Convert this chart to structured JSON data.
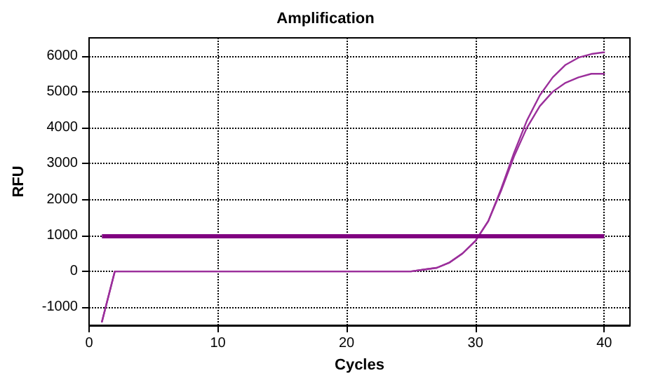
{
  "chart_data": {
    "type": "line",
    "title": "Amplification",
    "xlabel": "Cycles",
    "ylabel": "RFU",
    "xlim": [
      0,
      42
    ],
    "xticks": [
      0,
      10,
      20,
      30,
      40
    ],
    "ylim": [
      -1500,
      6500
    ],
    "yticks": [
      -1000,
      0,
      1000,
      2000,
      3000,
      4000,
      5000,
      6000
    ],
    "grid": true,
    "line_style": "solid",
    "marker": "none",
    "x": [
      1,
      2,
      3,
      4,
      5,
      6,
      7,
      8,
      9,
      10,
      11,
      12,
      13,
      14,
      15,
      16,
      17,
      18,
      19,
      20,
      21,
      22,
      23,
      24,
      25,
      26,
      27,
      28,
      29,
      30,
      31,
      32,
      33,
      34,
      35,
      36,
      37,
      38,
      39,
      40
    ],
    "series": [
      {
        "color": "#9b2f9b",
        "values": [
          -1400,
          0,
          0,
          0,
          0,
          0,
          0,
          0,
          0,
          0,
          0,
          0,
          0,
          0,
          0,
          0,
          0,
          0,
          0,
          0,
          0,
          0,
          0,
          0,
          0,
          50,
          100,
          250,
          500,
          850,
          1400,
          2300,
          3300,
          4200,
          4900,
          5400,
          5750,
          5950,
          6050,
          6100
        ]
      },
      {
        "color": "#9b2f9b",
        "values": [
          -1400,
          0,
          0,
          0,
          0,
          0,
          0,
          0,
          0,
          0,
          0,
          0,
          0,
          0,
          0,
          0,
          0,
          0,
          0,
          0,
          0,
          0,
          0,
          0,
          0,
          50,
          100,
          250,
          500,
          850,
          1400,
          2250,
          3200,
          4000,
          4600,
          5000,
          5250,
          5400,
          5500,
          5500
        ]
      }
    ],
    "ref_lines": [
      {
        "axis": "y",
        "value": 1000,
        "color": "#800080",
        "line_style": "solid"
      }
    ]
  }
}
